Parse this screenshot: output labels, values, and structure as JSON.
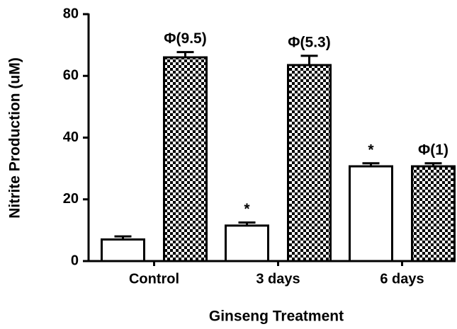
{
  "chart_data": {
    "type": "bar",
    "x_label": "Ginseng Treatment",
    "y_label": "Nitrite Production (uM)",
    "categories": [
      "Control",
      "3 days",
      "6 days"
    ],
    "series": [
      {
        "color": "#ffffff",
        "values": [
          7,
          11.5,
          30.7
        ],
        "errors": [
          1,
          1,
          1
        ],
        "annotations": [
          null,
          "*",
          "*"
        ]
      },
      {
        "color": "#000000",
        "pattern": "checker",
        "values": [
          66,
          63.5,
          30.7
        ],
        "errors": [
          1.7,
          3,
          1
        ],
        "annotations": [
          "Φ(9.5)",
          "Φ(5.3)",
          "Φ(1)"
        ]
      }
    ],
    "ylim": [
      0,
      80
    ],
    "yticks": [
      0,
      20,
      40,
      60,
      80
    ],
    "grid": false
  }
}
